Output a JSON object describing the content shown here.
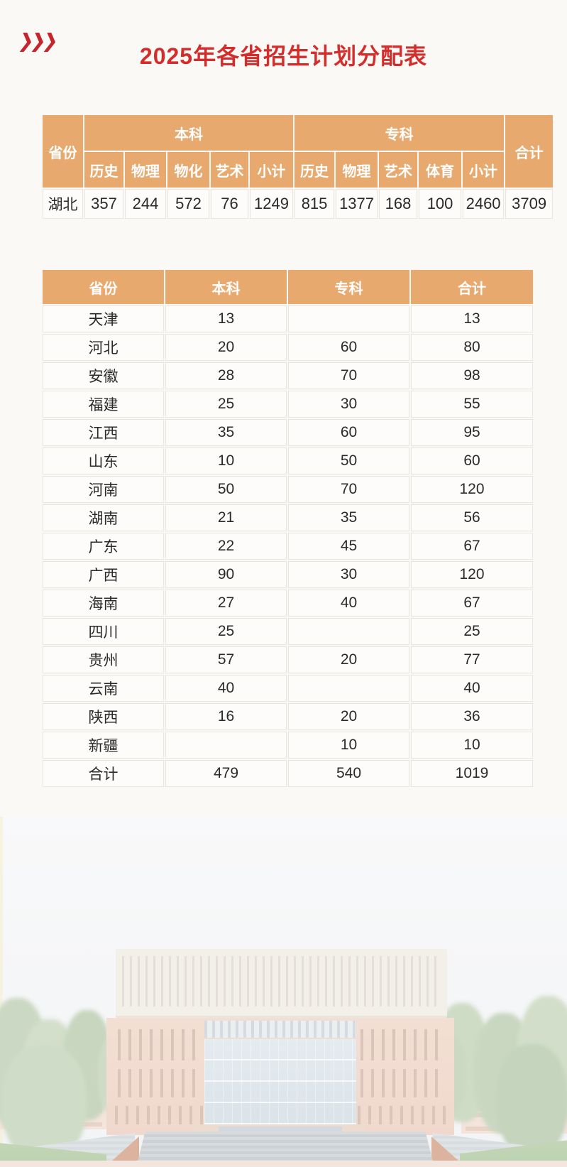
{
  "theme": {
    "accent_red": "#C5252B",
    "title_red": "#D32E2C",
    "header_orange": "#E8A96F",
    "page_bg": "#FAF9F6"
  },
  "header": {
    "icon": "triple-chevron-icon",
    "title": "2025年各省招生计划分配表"
  },
  "plan_table": {
    "corner_header": "省份",
    "total_header": "合计",
    "groups": [
      {
        "label": "本科",
        "subcols": [
          "历史",
          "物理",
          "物化",
          "艺术",
          "小计"
        ]
      },
      {
        "label": "专科",
        "subcols": [
          "历史",
          "物理",
          "艺术",
          "体育",
          "小计"
        ]
      }
    ],
    "rows": [
      {
        "province": "湖北",
        "values": [
          "357",
          "244",
          "572",
          "76",
          "1249",
          "815",
          "1377",
          "168",
          "100",
          "2460"
        ],
        "total": "3709"
      }
    ]
  },
  "province_table": {
    "headers": [
      "省份",
      "本科",
      "专科",
      "合计"
    ],
    "rows": [
      [
        "天津",
        "13",
        "",
        "13"
      ],
      [
        "河北",
        "20",
        "60",
        "80"
      ],
      [
        "安徽",
        "28",
        "70",
        "98"
      ],
      [
        "福建",
        "25",
        "30",
        "55"
      ],
      [
        "江西",
        "35",
        "60",
        "95"
      ],
      [
        "山东",
        "10",
        "50",
        "60"
      ],
      [
        "河南",
        "50",
        "70",
        "120"
      ],
      [
        "湖南",
        "21",
        "35",
        "56"
      ],
      [
        "广东",
        "22",
        "45",
        "67"
      ],
      [
        "广西",
        "90",
        "30",
        "120"
      ],
      [
        "海南",
        "27",
        "40",
        "67"
      ],
      [
        "四川",
        "25",
        "",
        "25"
      ],
      [
        "贵州",
        "57",
        "20",
        "77"
      ],
      [
        "云南",
        "40",
        "",
        "40"
      ],
      [
        "陕西",
        "16",
        "20",
        "36"
      ],
      [
        "新疆",
        "",
        "10",
        "10"
      ],
      [
        "合计",
        "479",
        "540",
        "1019"
      ]
    ]
  },
  "footer_photo": {
    "name": "campus-building-photo"
  }
}
